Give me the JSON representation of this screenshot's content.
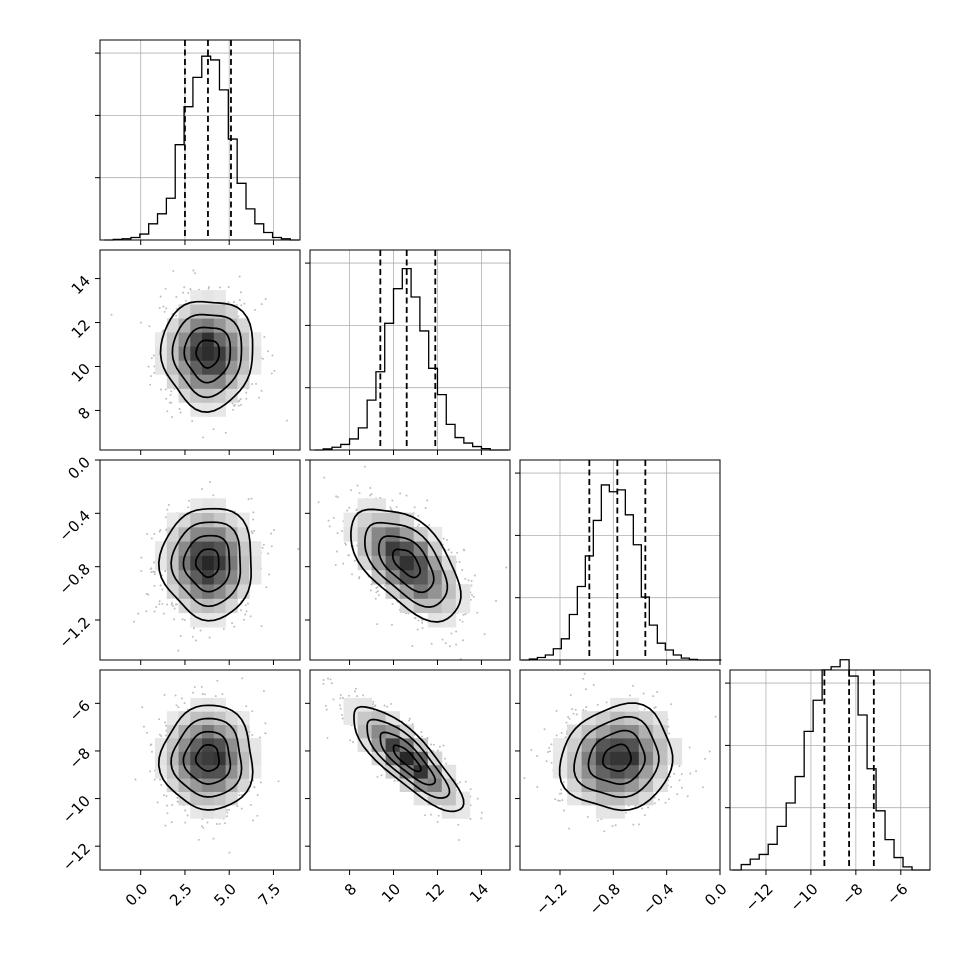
{
  "chart_data": {
    "type": "corner",
    "parameters": [
      {
        "xlim": [
          -2.3,
          9.0
        ],
        "xticks": [
          0.0,
          2.5,
          5.0,
          7.5
        ],
        "xtick_labels": [
          "0.0",
          "2.5",
          "5.0",
          "7.5"
        ],
        "quantiles": [
          2.5,
          3.8,
          5.1
        ],
        "hist_max": 3000,
        "hist_yticks": [
          1000,
          2000,
          3000
        ],
        "hist_x": [
          -1.8,
          -1.3,
          -0.8,
          -0.3,
          0.2,
          0.7,
          1.2,
          1.7,
          2.2,
          2.7,
          3.2,
          3.7,
          4.2,
          4.7,
          5.2,
          5.7,
          6.2,
          6.7,
          7.2,
          7.7,
          8.2,
          8.7
        ],
        "hist_counts": [
          0,
          10,
          20,
          40,
          95,
          260,
          420,
          670,
          1530,
          2140,
          2610,
          2950,
          2890,
          2410,
          1620,
          910,
          500,
          260,
          120,
          40,
          20,
          0
        ]
      },
      {
        "xlim": [
          6.2,
          15.3
        ],
        "xticks": [
          8,
          10,
          12,
          14
        ],
        "xtick_labels": [
          "8",
          "10",
          "12",
          "14"
        ],
        "yticks": [
          8,
          10,
          12,
          14
        ],
        "ytick_labels": [
          "8",
          "10",
          "12",
          "14"
        ],
        "quantiles": [
          9.4,
          10.6,
          11.9
        ],
        "hist_max": 2700,
        "hist_yticks": [
          900,
          1800,
          2700
        ],
        "hist_x": [
          6.6,
          7.0,
          7.4,
          7.8,
          8.2,
          8.6,
          9.0,
          9.4,
          9.8,
          10.2,
          10.6,
          11.0,
          11.4,
          11.8,
          12.2,
          12.6,
          13.0,
          13.4,
          13.8,
          14.2,
          14.6,
          15.0
        ],
        "hist_counts": [
          0,
          15,
          40,
          80,
          160,
          320,
          720,
          1130,
          1830,
          2330,
          2620,
          2210,
          1720,
          1180,
          800,
          370,
          180,
          100,
          50,
          20,
          0,
          0
        ]
      },
      {
        "xlim": [
          -1.5,
          0.0
        ],
        "xticks": [
          -1.2,
          -0.8,
          -0.4,
          0.0
        ],
        "xtick_labels": [
          "−1.2",
          "−0.8",
          "−0.4",
          "0.0"
        ],
        "yticks": [
          0.0,
          -0.4,
          -0.8,
          -1.2
        ],
        "ytick_labels": [
          "0.0",
          "−0.4",
          "−0.8",
          "−1.2"
        ],
        "quantiles": [
          -0.98,
          -0.77,
          -0.56
        ],
        "hist_max": 3000,
        "hist_yticks": [
          1000,
          2000,
          3000
        ],
        "hist_x": [
          -1.46,
          -1.4,
          -1.34,
          -1.28,
          -1.22,
          -1.16,
          -1.1,
          -1.04,
          -0.98,
          -0.92,
          -0.86,
          -0.8,
          -0.74,
          -0.68,
          -0.62,
          -0.56,
          -0.5,
          -0.44,
          -0.38,
          -0.32,
          -0.26,
          -0.2,
          -0.14,
          -0.08,
          -0.02
        ],
        "hist_counts": [
          0,
          15,
          40,
          80,
          180,
          340,
          730,
          1180,
          1670,
          2240,
          2810,
          2700,
          2730,
          2330,
          1850,
          1010,
          560,
          270,
          160,
          80,
          30,
          10,
          0,
          0,
          0
        ]
      },
      {
        "xlim": [
          -13.6,
          -4.7
        ],
        "xticks": [
          -12,
          -10,
          -8,
          -6
        ],
        "xtick_labels": [
          "−12",
          "−10",
          "−8",
          "−6"
        ],
        "yticks": [
          -6,
          -8,
          -10,
          -12
        ],
        "ytick_labels": [
          "−6",
          "−8",
          "−10",
          "−12"
        ],
        "ylim": [
          -13.0,
          -4.6
        ],
        "quantiles": [
          -9.4,
          -8.3,
          -7.2
        ],
        "hist_max": 2400,
        "hist_yticks": [
          800,
          1600,
          2400
        ],
        "hist_x": [
          -13.3,
          -12.9,
          -12.5,
          -12.1,
          -11.7,
          -11.3,
          -10.9,
          -10.5,
          -10.1,
          -9.7,
          -9.3,
          -8.9,
          -8.5,
          -8.1,
          -7.7,
          -7.3,
          -6.9,
          -6.5,
          -6.1,
          -5.7,
          -5.3,
          -4.9
        ],
        "hist_counts": [
          0,
          70,
          140,
          200,
          330,
          560,
          860,
          1200,
          1780,
          2180,
          2570,
          2610,
          2700,
          2490,
          1990,
          1300,
          760,
          390,
          160,
          40,
          0,
          0
        ]
      }
    ],
    "pairs": [
      {
        "row": 1,
        "col": 0,
        "center": [
          3.8,
          10.6
        ],
        "sigma": [
          1.3,
          1.25
        ],
        "rho": 0.0
      },
      {
        "row": 2,
        "col": 0,
        "center": [
          3.8,
          -0.77
        ],
        "sigma": [
          1.3,
          0.21
        ],
        "rho": 0.0
      },
      {
        "row": 2,
        "col": 1,
        "center": [
          10.6,
          -0.77
        ],
        "sigma": [
          1.25,
          0.21
        ],
        "rho": -0.55
      },
      {
        "row": 3,
        "col": 0,
        "center": [
          3.8,
          -8.3
        ],
        "sigma": [
          1.3,
          1.1
        ],
        "rho": 0.0
      },
      {
        "row": 3,
        "col": 1,
        "center": [
          10.6,
          -8.3
        ],
        "sigma": [
          1.25,
          1.1
        ],
        "rho": -0.82
      },
      {
        "row": 3,
        "col": 2,
        "center": [
          -0.77,
          -8.3
        ],
        "sigma": [
          0.21,
          1.1
        ],
        "rho": 0.1
      }
    ],
    "contour_levels_sigma": [
      0.5,
      1.0,
      1.5,
      2.0
    ],
    "grid": true
  }
}
